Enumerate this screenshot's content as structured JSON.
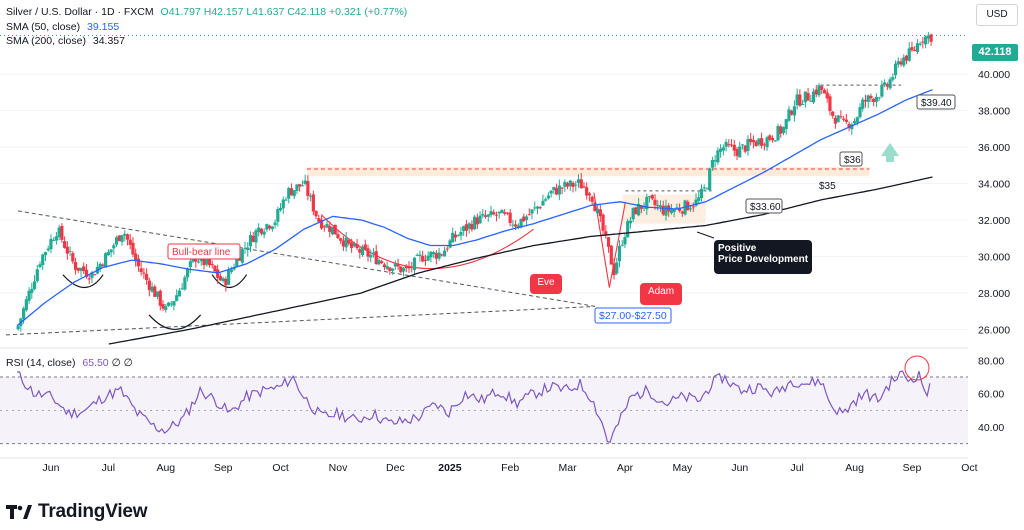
{
  "header": {
    "symbol_line": "Silver / U.S. Dollar · 1D · FXCM",
    "ohlc": "O41.797  H42.157  L41.637  C42.118  +0.321 (+0.77%)",
    "sma50_label": "SMA (50, close)",
    "sma50_value": "39.155",
    "sma200_label": "SMA (200, close)",
    "sma200_value": "34.357"
  },
  "currency_button": "USD",
  "last_price": "42.118",
  "rsi_legend": {
    "label": "RSI (14, close)",
    "value": "65.50",
    "extra": "∅ ∅"
  },
  "brand": "TradingView",
  "colors": {
    "candle_up": "#22ab94",
    "candle_down": "#f23645",
    "sma50": "#2962ff",
    "sma200": "#131722",
    "rsi": "#7e57c2",
    "annotation_red": "#f23645",
    "annotation_dark": "#131722"
  },
  "chart_data": [
    {
      "type": "candlestick",
      "title": "Silver / U.S. Dollar · 1D · FXCM",
      "ylim": [
        25.2,
        43.3
      ],
      "y_ticks": [
        "26.000",
        "28.000",
        "30.000",
        "32.000",
        "34.000",
        "36.000",
        "38.000",
        "40.000"
      ],
      "x_labels": [
        "Jun",
        "Jul",
        "Aug",
        "Sep",
        "Oct",
        "Nov",
        "Dec",
        "2025",
        "Feb",
        "Mar",
        "Apr",
        "May",
        "Jun",
        "Jul",
        "Aug",
        "Sep",
        "Oct"
      ],
      "x_label_index": [
        0.6,
        1.6,
        2.6,
        3.6,
        4.6,
        5.6,
        6.6,
        7.55,
        8.6,
        9.6,
        10.6,
        11.6,
        12.6,
        13.6,
        14.6,
        15.6,
        16.6
      ],
      "close_anchors": [
        [
          0,
          26.0
        ],
        [
          0.4,
          29.8
        ],
        [
          0.7,
          31.5
        ],
        [
          1.0,
          29.5
        ],
        [
          1.3,
          29.0
        ],
        [
          1.6,
          30.2
        ],
        [
          1.85,
          31.5
        ],
        [
          2.1,
          29.5
        ],
        [
          2.4,
          28.0
        ],
        [
          2.6,
          27.0
        ],
        [
          2.8,
          28.0
        ],
        [
          3.1,
          30.0
        ],
        [
          3.35,
          29.5
        ],
        [
          3.6,
          28.5
        ],
        [
          3.85,
          30.0
        ],
        [
          4.2,
          31.5
        ],
        [
          4.5,
          32.0
        ],
        [
          4.7,
          33.5
        ],
        [
          5.0,
          34.0
        ],
        [
          5.25,
          32.0
        ],
        [
          5.5,
          31.5
        ],
        [
          5.8,
          30.5
        ],
        [
          6.2,
          30.0
        ],
        [
          6.5,
          29.5
        ],
        [
          6.8,
          29.2
        ],
        [
          7.05,
          30.0
        ],
        [
          7.4,
          30.2
        ],
        [
          7.6,
          31.0
        ],
        [
          8.0,
          32.0
        ],
        [
          8.4,
          32.3
        ],
        [
          8.7,
          31.8
        ],
        [
          9.0,
          32.5
        ],
        [
          9.3,
          33.5
        ],
        [
          9.5,
          33.8
        ],
        [
          9.8,
          34.0
        ],
        [
          10.0,
          33.5
        ],
        [
          10.2,
          31.5
        ],
        [
          10.4,
          29.2
        ],
        [
          10.55,
          31.0
        ],
        [
          10.75,
          32.5
        ],
        [
          11.0,
          33.0
        ],
        [
          11.3,
          32.5
        ],
        [
          11.6,
          32.7
        ],
        [
          11.85,
          33.0
        ],
        [
          12.0,
          33.8
        ],
        [
          12.15,
          35.5
        ],
        [
          12.3,
          36.0
        ],
        [
          12.55,
          35.8
        ],
        [
          12.8,
          36.2
        ],
        [
          13.1,
          36.5
        ],
        [
          13.35,
          37.0
        ],
        [
          13.55,
          38.5
        ],
        [
          13.8,
          38.8
        ],
        [
          14.0,
          39.3
        ],
        [
          14.2,
          37.8
        ],
        [
          14.4,
          37.2
        ],
        [
          14.6,
          37.5
        ],
        [
          14.75,
          38.5
        ],
        [
          14.95,
          38.8
        ],
        [
          15.15,
          39.3
        ],
        [
          15.4,
          40.8
        ],
        [
          15.6,
          41.2
        ],
        [
          15.75,
          42.0
        ],
        [
          15.95,
          42.1
        ]
      ],
      "sma50_anchors": [
        [
          0,
          26.2
        ],
        [
          0.5,
          27.5
        ],
        [
          1.0,
          28.6
        ],
        [
          1.5,
          29.4
        ],
        [
          2.0,
          29.8
        ],
        [
          2.5,
          29.6
        ],
        [
          3.0,
          29.3
        ],
        [
          3.5,
          29.1
        ],
        [
          4.0,
          29.6
        ],
        [
          4.5,
          30.4
        ],
        [
          5.0,
          31.5
        ],
        [
          5.5,
          32.2
        ],
        [
          6.0,
          32.0
        ],
        [
          6.4,
          31.6
        ],
        [
          6.8,
          31.0
        ],
        [
          7.2,
          30.6
        ],
        [
          7.6,
          30.6
        ],
        [
          8.0,
          30.9
        ],
        [
          8.5,
          31.4
        ],
        [
          9.0,
          31.8
        ],
        [
          9.5,
          32.3
        ],
        [
          10.0,
          32.8
        ],
        [
          10.5,
          33.0
        ],
        [
          11.0,
          32.7
        ],
        [
          11.5,
          32.6
        ],
        [
          12.0,
          33.0
        ],
        [
          12.5,
          33.8
        ],
        [
          13.0,
          34.6
        ],
        [
          13.5,
          35.5
        ],
        [
          14.0,
          36.4
        ],
        [
          14.5,
          37.1
        ],
        [
          15.0,
          37.8
        ],
        [
          15.5,
          38.6
        ],
        [
          15.95,
          39.15
        ]
      ],
      "sma200_anchors": [
        [
          1.6,
          25.2
        ],
        [
          3.0,
          26.0
        ],
        [
          4.5,
          27.0
        ],
        [
          6.0,
          28.0
        ],
        [
          7.0,
          29.1
        ],
        [
          8.0,
          29.9
        ],
        [
          9.0,
          30.6
        ],
        [
          10.0,
          31.1
        ],
        [
          11.0,
          31.4
        ],
        [
          12.0,
          31.7
        ],
        [
          13.0,
          32.3
        ],
        [
          14.0,
          33.1
        ],
        [
          15.0,
          33.7
        ],
        [
          15.95,
          34.36
        ]
      ],
      "levels": [
        {
          "label": "$39.40",
          "value": 39.4
        },
        {
          "label": "$36",
          "value": 36.0
        },
        {
          "label": "$35",
          "value": 34.8
        },
        {
          "label": "$33.60",
          "value": 33.6
        },
        {
          "label": "$27.00-$27.50",
          "value": 27.25
        }
      ],
      "annotations": [
        "Bull-bear line",
        "Eve",
        "Adam",
        "Positive\nPrice Development"
      ]
    },
    {
      "type": "line",
      "title": "RSI (14, close)",
      "ylim": [
        25,
        85
      ],
      "y_ticks": [
        "80.00",
        "60.00",
        "40.00"
      ],
      "bands": [
        70,
        30
      ],
      "anchors": [
        [
          0,
          72
        ],
        [
          0.3,
          60
        ],
        [
          0.6,
          58
        ],
        [
          0.9,
          48
        ],
        [
          1.2,
          50
        ],
        [
          1.5,
          58
        ],
        [
          1.8,
          62
        ],
        [
          2.1,
          48
        ],
        [
          2.4,
          40
        ],
        [
          2.6,
          38
        ],
        [
          2.9,
          45
        ],
        [
          3.2,
          62
        ],
        [
          3.5,
          55
        ],
        [
          3.7,
          48
        ],
        [
          4.0,
          58
        ],
        [
          4.3,
          62
        ],
        [
          4.6,
          64
        ],
        [
          4.8,
          70
        ],
        [
          5.0,
          58
        ],
        [
          5.3,
          46
        ],
        [
          5.6,
          48
        ],
        [
          5.9,
          44
        ],
        [
          6.2,
          48
        ],
        [
          6.5,
          42
        ],
        [
          6.8,
          44
        ],
        [
          7.0,
          46
        ],
        [
          7.3,
          54
        ],
        [
          7.5,
          48
        ],
        [
          7.8,
          60
        ],
        [
          8.1,
          56
        ],
        [
          8.4,
          62
        ],
        [
          8.7,
          54
        ],
        [
          9.0,
          60
        ],
        [
          9.3,
          64
        ],
        [
          9.6,
          62
        ],
        [
          9.8,
          66
        ],
        [
          10.0,
          58
        ],
        [
          10.2,
          42
        ],
        [
          10.3,
          30
        ],
        [
          10.45,
          40
        ],
        [
          10.7,
          58
        ],
        [
          11.0,
          62
        ],
        [
          11.3,
          54
        ],
        [
          11.6,
          58
        ],
        [
          11.9,
          56
        ],
        [
          12.1,
          66
        ],
        [
          12.3,
          70
        ],
        [
          12.6,
          62
        ],
        [
          12.9,
          64
        ],
        [
          13.2,
          60
        ],
        [
          13.5,
          68
        ],
        [
          13.8,
          66
        ],
        [
          14.0,
          68
        ],
        [
          14.2,
          52
        ],
        [
          14.4,
          48
        ],
        [
          14.6,
          56
        ],
        [
          14.8,
          60
        ],
        [
          15.0,
          56
        ],
        [
          15.2,
          66
        ],
        [
          15.4,
          72
        ],
        [
          15.55,
          68
        ],
        [
          15.7,
          72
        ],
        [
          15.85,
          60
        ],
        [
          15.95,
          65.5
        ]
      ]
    }
  ]
}
